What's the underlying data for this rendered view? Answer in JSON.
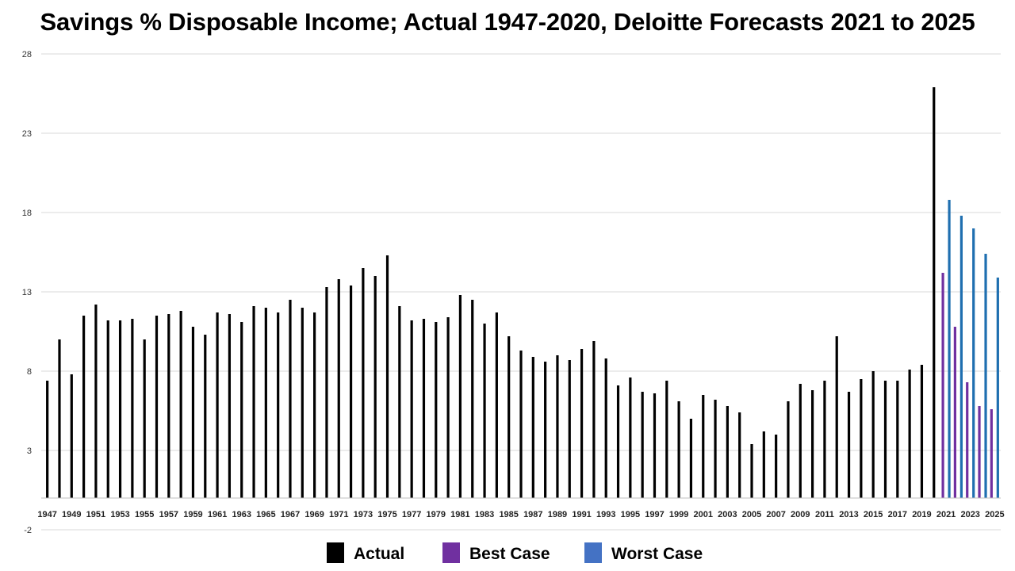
{
  "chart_data": {
    "type": "bar",
    "title": "Savings % Disposable Income; Actual 1947-2020, Deloitte Forecasts 2021 to 2025",
    "xlabel": "",
    "ylabel": "",
    "ylim": [
      -2,
      28
    ],
    "yticks": [
      28,
      23,
      18,
      13,
      8,
      3,
      -2
    ],
    "grid": true,
    "legend_position": "bottom-center",
    "tick_labels": [
      "1947",
      "1949",
      "1951",
      "1953",
      "1955",
      "1957",
      "1959",
      "1961",
      "1963",
      "1965",
      "1967",
      "1969",
      "1971",
      "1973",
      "1975",
      "1977",
      "1979",
      "1981",
      "1983",
      "1985",
      "1987",
      "1989",
      "1991",
      "1993",
      "1995",
      "1997",
      "1999",
      "2001",
      "2003",
      "2005",
      "2007",
      "2009",
      "2011",
      "2013",
      "2015",
      "2017",
      "2019",
      "2021",
      "2023",
      "2025"
    ],
    "series": [
      {
        "name": "Actual",
        "color": "#000000",
        "x": [
          1947,
          1948,
          1949,
          1950,
          1951,
          1952,
          1953,
          1954,
          1955,
          1956,
          1957,
          1958,
          1959,
          1960,
          1961,
          1962,
          1963,
          1964,
          1965,
          1966,
          1967,
          1968,
          1969,
          1970,
          1971,
          1972,
          1973,
          1974,
          1975,
          1976,
          1977,
          1978,
          1979,
          1980,
          1981,
          1982,
          1983,
          1984,
          1985,
          1986,
          1987,
          1988,
          1989,
          1990,
          1991,
          1992,
          1993,
          1994,
          1995,
          1996,
          1997,
          1998,
          1999,
          2000,
          2001,
          2002,
          2003,
          2004,
          2005,
          2006,
          2007,
          2008,
          2009,
          2010,
          2011,
          2012,
          2013,
          2014,
          2015,
          2016,
          2017,
          2018,
          2019,
          2020
        ],
        "values": [
          7.4,
          10.0,
          7.8,
          11.5,
          12.2,
          11.2,
          11.2,
          11.3,
          10.0,
          11.5,
          11.6,
          11.8,
          10.8,
          10.3,
          11.7,
          11.6,
          11.1,
          12.1,
          12.0,
          11.7,
          12.5,
          12.0,
          11.7,
          13.3,
          13.8,
          13.4,
          14.5,
          14.0,
          15.3,
          12.1,
          11.2,
          11.3,
          11.1,
          11.4,
          12.8,
          12.5,
          11.0,
          11.7,
          10.2,
          9.3,
          8.9,
          8.6,
          9.0,
          8.7,
          9.4,
          9.9,
          8.8,
          7.1,
          7.6,
          6.7,
          6.6,
          7.4,
          6.1,
          5.0,
          6.5,
          6.2,
          5.8,
          5.4,
          3.4,
          4.2,
          4.0,
          6.1,
          7.2,
          6.8,
          7.4,
          10.2,
          6.7,
          7.5,
          8.0,
          7.4,
          7.4,
          8.1,
          8.4,
          25.9
        ]
      },
      {
        "name": "Best Case",
        "color": "#7030A0",
        "x": [
          2021,
          2022,
          2023,
          2024,
          2025
        ],
        "values": [
          14.2,
          10.8,
          7.3,
          5.8,
          5.6
        ]
      },
      {
        "name": "Worst Case",
        "color": "#4472C4",
        "bar_color": "#1F6FB0",
        "x": [
          2021,
          2022,
          2023,
          2024,
          2025
        ],
        "values": [
          18.8,
          17.8,
          17.0,
          15.4,
          13.9
        ]
      }
    ]
  }
}
